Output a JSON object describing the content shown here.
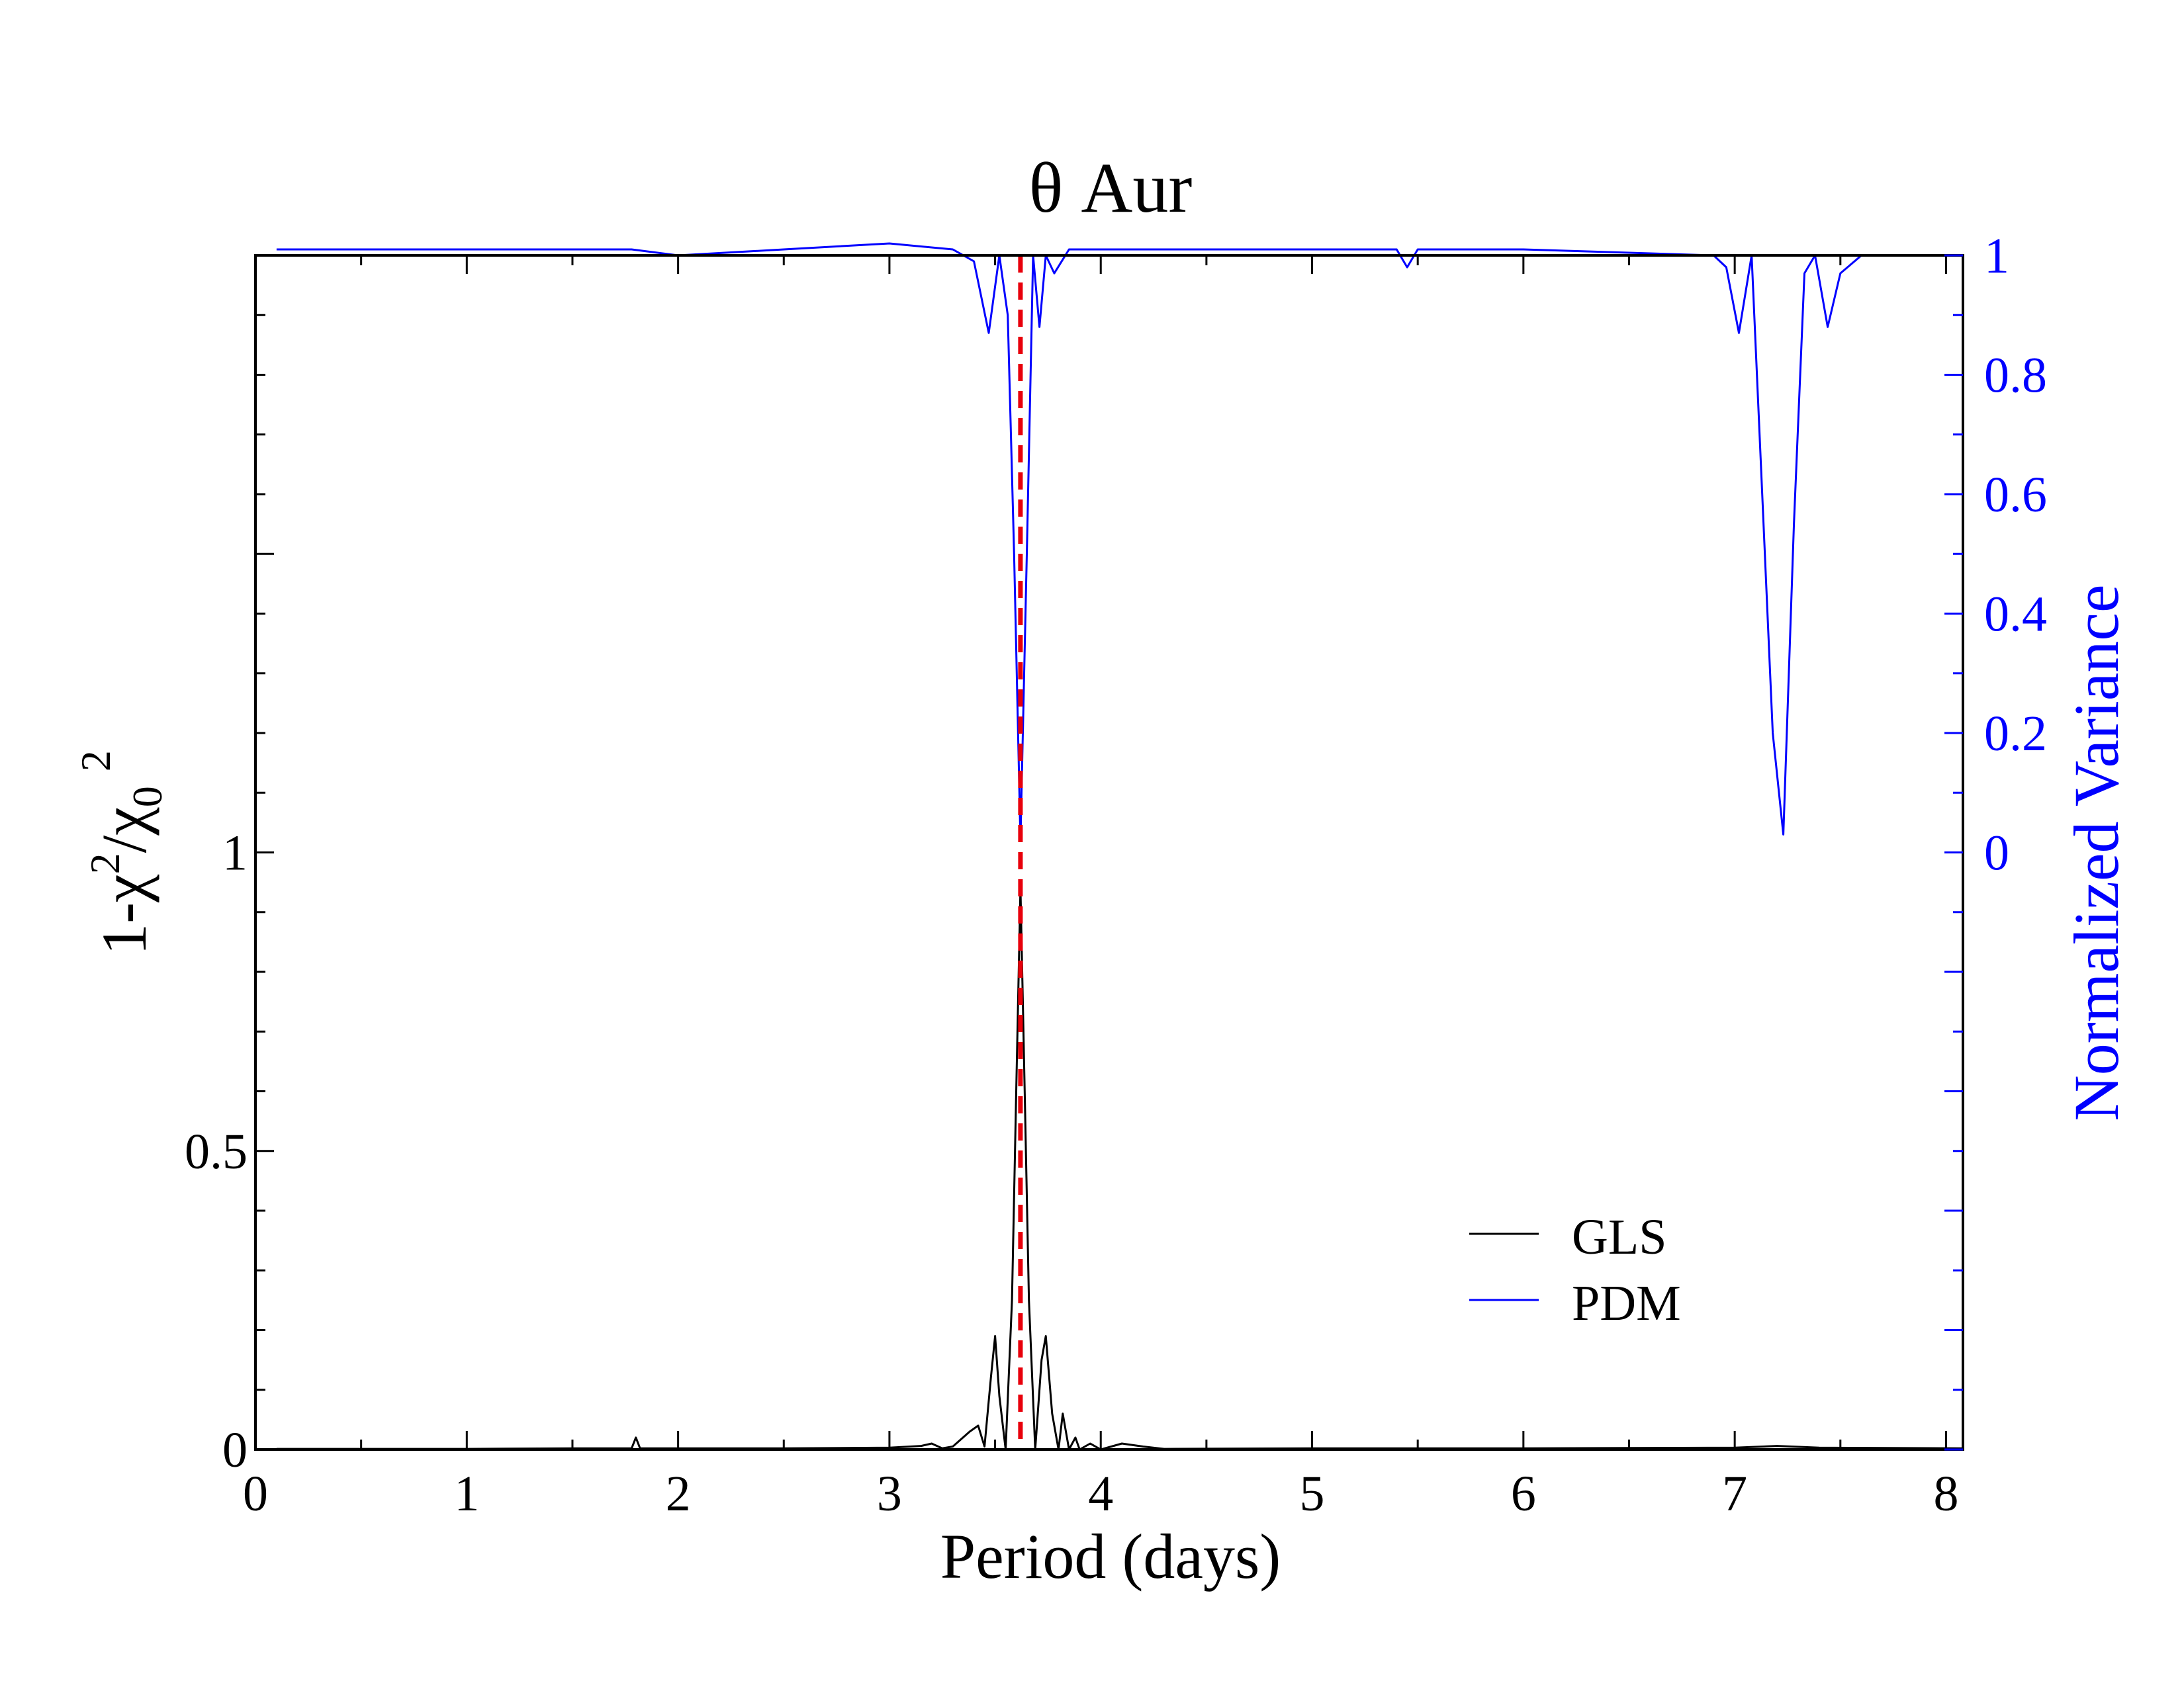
{
  "chart_data": {
    "type": "line",
    "title": "θ Aur",
    "xlabel": "Period (days)",
    "ylabel_left": {
      "base": "1-χ",
      "sup1": "2",
      "mid": "/χ",
      "sub": "0",
      "sup2": "2"
    },
    "ylabel_right": "Normalized Variance",
    "xlim": [
      0,
      8.08
    ],
    "ylim_left": [
      0,
      2.0
    ],
    "ylim_right": [
      -1.0,
      1.0
    ],
    "x_ticks": [
      0,
      1,
      2,
      3,
      4,
      5,
      6,
      7,
      8
    ],
    "x_tick_labels": [
      "0",
      "1",
      "2",
      "3",
      "4",
      "5",
      "6",
      "7",
      "8"
    ],
    "y_left_ticks": [
      0,
      0.5,
      1
    ],
    "y_left_tick_labels": [
      "0",
      "0.5",
      "1"
    ],
    "y_right_ticks": [
      0,
      0.2,
      0.4,
      0.6,
      0.8,
      1
    ],
    "y_right_tick_labels": [
      "0",
      "0.2",
      "0.4",
      "0.6",
      "0.8",
      "1"
    ],
    "grid": false,
    "legend_position": "bottom-right",
    "marker_period": 3.62,
    "colors": {
      "gls": "#000000",
      "pdm": "#0000ff",
      "marker": "#e8000b",
      "axes": "#000000"
    },
    "series": [
      {
        "name": "GLS",
        "axis": "left",
        "x": [
          0.1,
          0.5,
          1.0,
          1.5,
          1.78,
          1.8,
          1.82,
          2.0,
          2.5,
          3.0,
          3.15,
          3.2,
          3.25,
          3.3,
          3.38,
          3.42,
          3.45,
          3.48,
          3.5,
          3.52,
          3.55,
          3.58,
          3.6,
          3.62,
          3.64,
          3.66,
          3.69,
          3.72,
          3.74,
          3.77,
          3.8,
          3.82,
          3.85,
          3.88,
          3.9,
          3.95,
          4.0,
          4.1,
          4.2,
          4.3,
          5.0,
          6.0,
          7.0,
          7.2,
          7.4,
          8.08
        ],
        "y": [
          0.001,
          0.001,
          0.001,
          0.002,
          0.002,
          0.02,
          0.002,
          0.002,
          0.002,
          0.003,
          0.006,
          0.01,
          0.002,
          0.005,
          0.03,
          0.04,
          0.005,
          0.12,
          0.19,
          0.09,
          0.0,
          0.25,
          0.6,
          0.94,
          0.6,
          0.25,
          0.0,
          0.15,
          0.19,
          0.06,
          0.0,
          0.06,
          0.0,
          0.02,
          0.0,
          0.01,
          0.0,
          0.01,
          0.005,
          0.001,
          0.002,
          0.002,
          0.003,
          0.006,
          0.003,
          0.002
        ]
      },
      {
        "name": "PDM",
        "axis": "right",
        "x": [
          0.1,
          0.3,
          0.6,
          1.0,
          1.45,
          1.78,
          2.0,
          2.5,
          3.0,
          3.3,
          3.4,
          3.47,
          3.52,
          3.56,
          3.59,
          3.62,
          3.65,
          3.68,
          3.71,
          3.74,
          3.78,
          3.85,
          4.0,
          5.0,
          5.4,
          5.45,
          5.5,
          6.0,
          6.9,
          6.96,
          7.02,
          7.08,
          7.13,
          7.18,
          7.23,
          7.28,
          7.33,
          7.38,
          7.44,
          7.5,
          7.6,
          7.8,
          8.08
        ],
        "y": [
          1.01,
          1.01,
          1.01,
          1.01,
          1.01,
          1.01,
          1.0,
          1.01,
          1.02,
          1.01,
          0.99,
          0.87,
          1.0,
          0.9,
          0.5,
          0.02,
          0.5,
          1.0,
          0.88,
          1.0,
          0.97,
          1.01,
          1.01,
          1.01,
          1.01,
          0.98,
          1.01,
          1.01,
          1.0,
          0.98,
          0.87,
          1.0,
          0.6,
          0.2,
          0.03,
          0.55,
          0.97,
          1.0,
          0.88,
          0.97,
          1.0,
          1.0,
          1.0
        ]
      }
    ]
  }
}
